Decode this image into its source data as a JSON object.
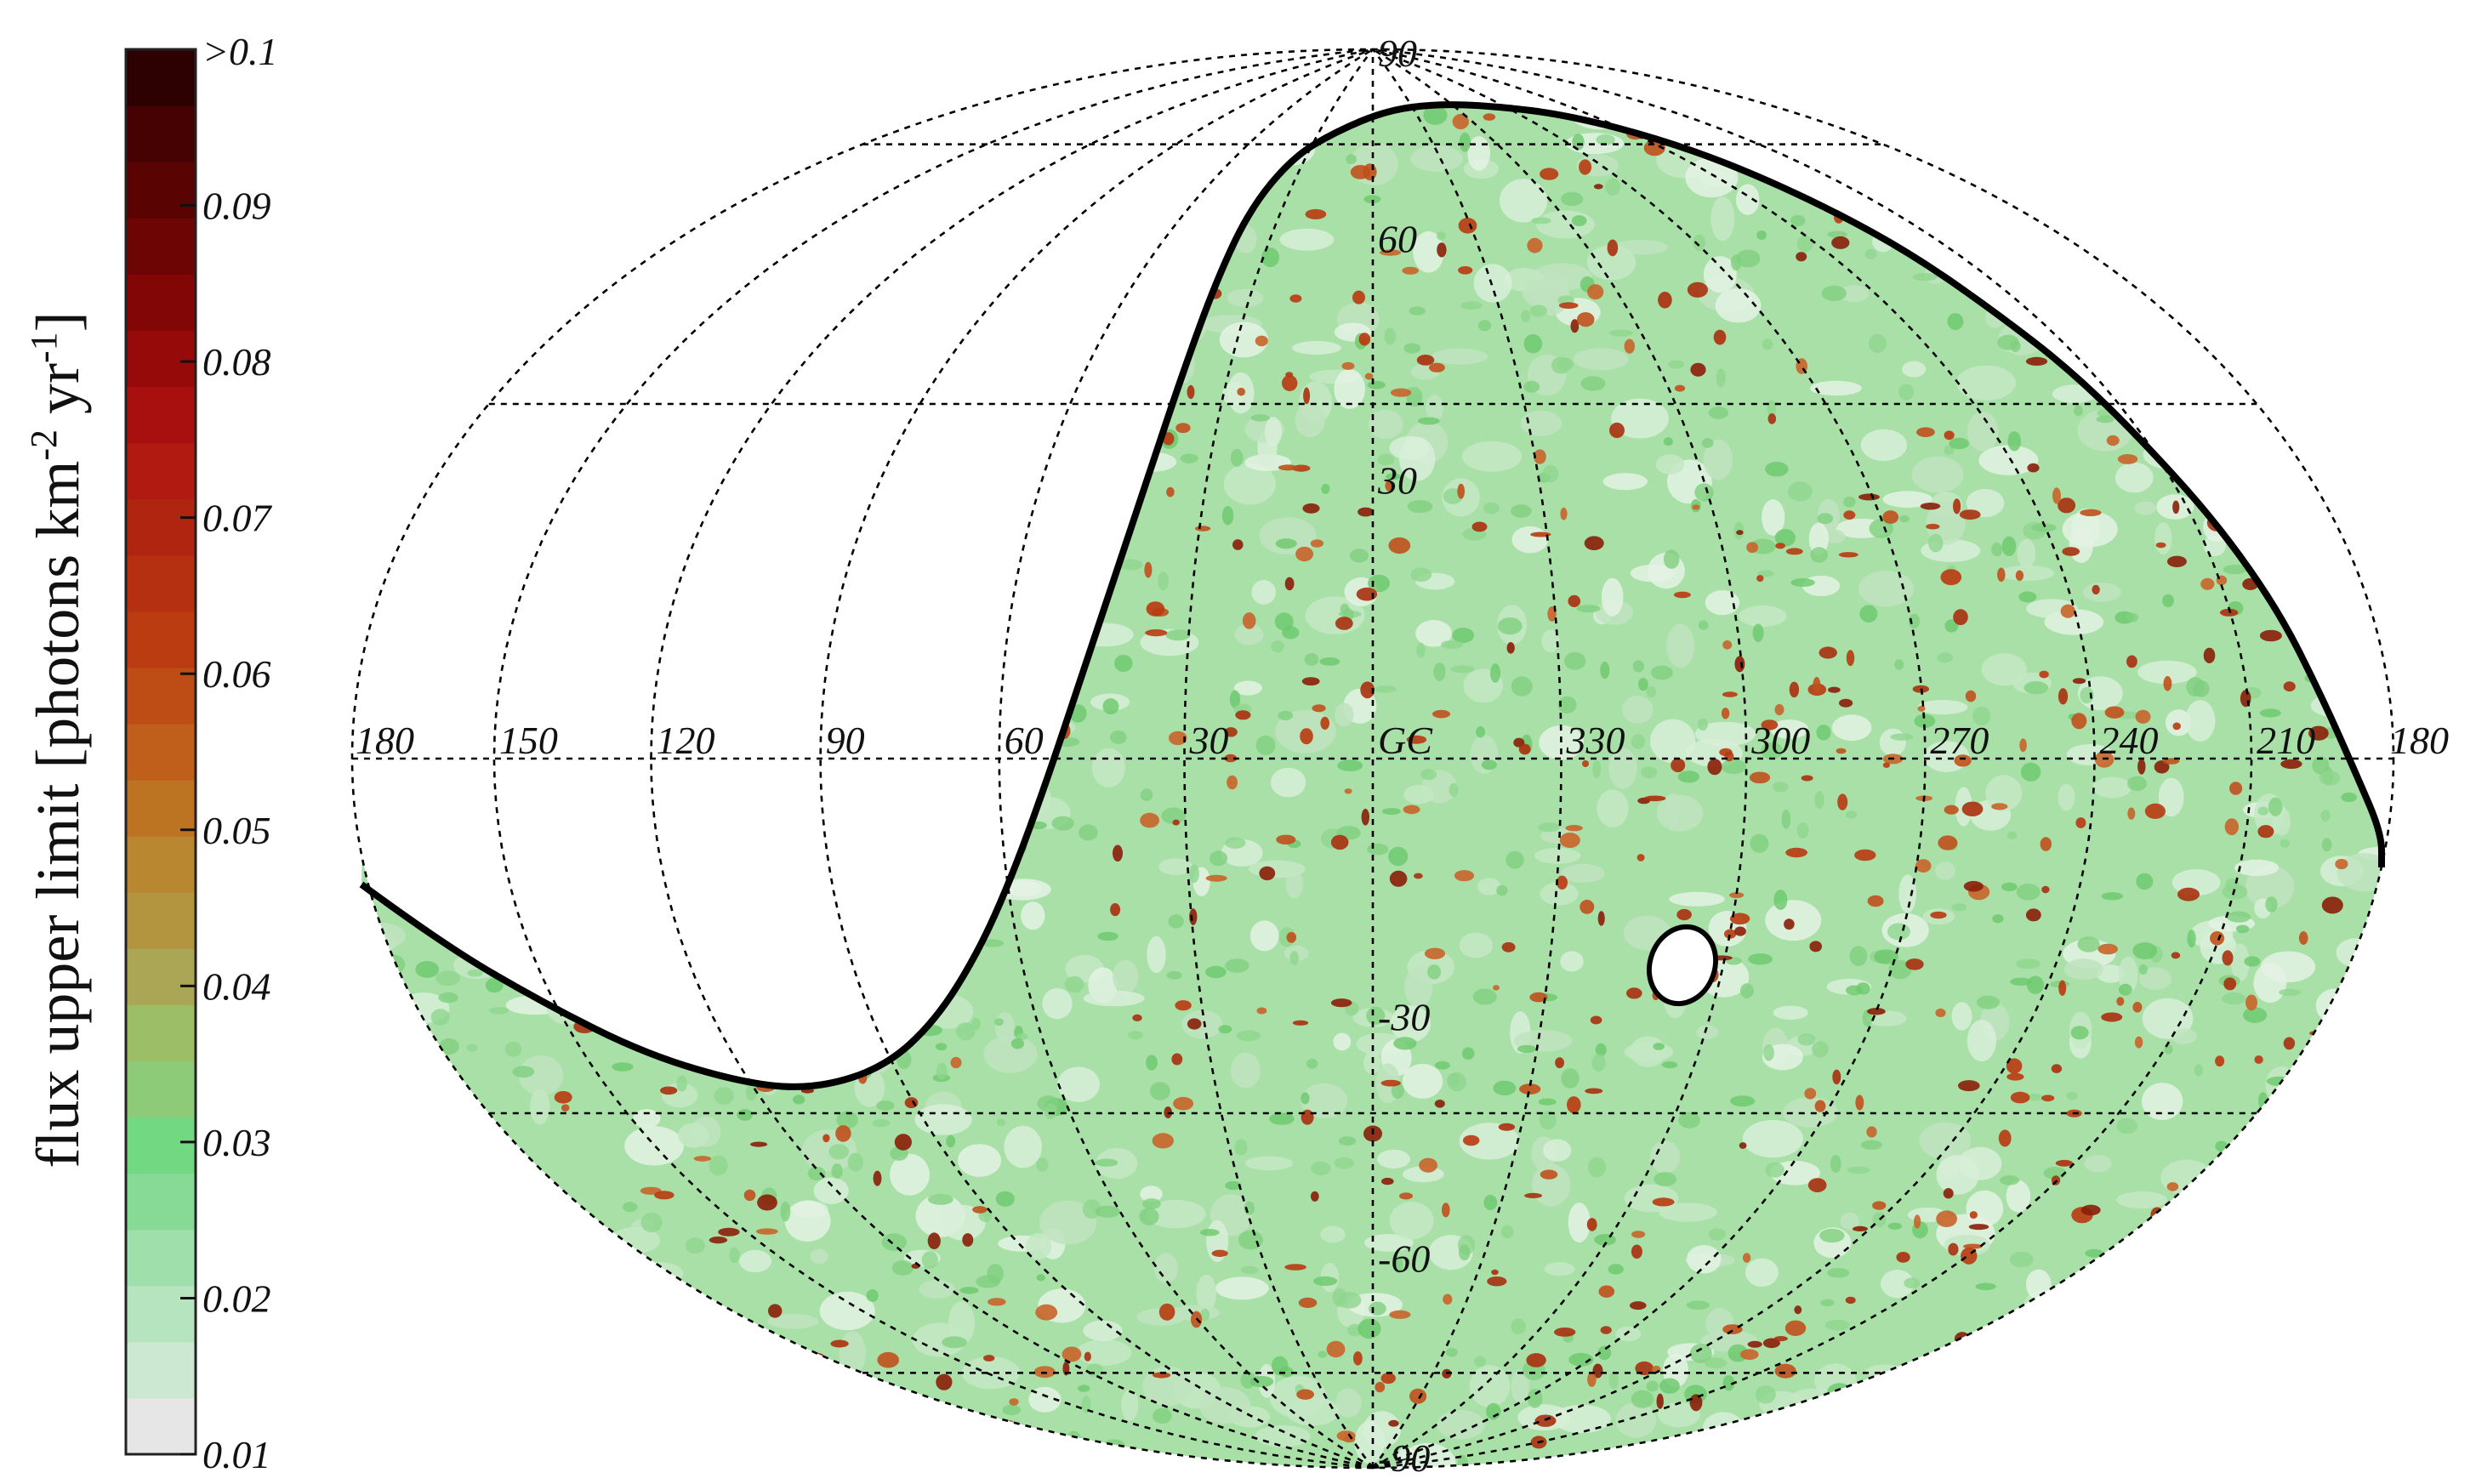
{
  "colorbar": {
    "title_main": "flux upper limit [photons km",
    "title_sup1": "-2",
    "title_mid": " yr",
    "title_sup2": "-1",
    "title_end": "]",
    "top_label": ">0.1",
    "ticks": [
      "0.09",
      "0.08",
      "0.07",
      "0.06",
      "0.05",
      "0.04",
      "0.03",
      "0.02",
      "0.01"
    ],
    "colors": [
      "#e6e6e6",
      "#cde8d2",
      "#b6e4bf",
      "#9edfab",
      "#86da96",
      "#73d882",
      "#8ecb78",
      "#9cbe67",
      "#aaa655",
      "#b4953f",
      "#b88730",
      "#bc7322",
      "#c05f1c",
      "#bd4d14",
      "#ba3c10",
      "#b53010",
      "#b02510",
      "#b01a10",
      "#a81010",
      "#960a0a",
      "#820606",
      "#6e0505",
      "#5a0303",
      "#460202",
      "#2d0101"
    ]
  },
  "map": {
    "projection": "Hammer-Aitoff",
    "coordinate_system": "galactic",
    "longitude_labels": [
      "180",
      "150",
      "120",
      "90",
      "60",
      "30",
      "GC",
      "330",
      "300",
      "270",
      "240",
      "210",
      "180"
    ],
    "latitude_labels": [
      "90",
      "60",
      "30",
      "-30",
      "-60",
      "-90"
    ],
    "base_color": "#a8e0a8",
    "hotspot_color": "#b83a10"
  }
}
